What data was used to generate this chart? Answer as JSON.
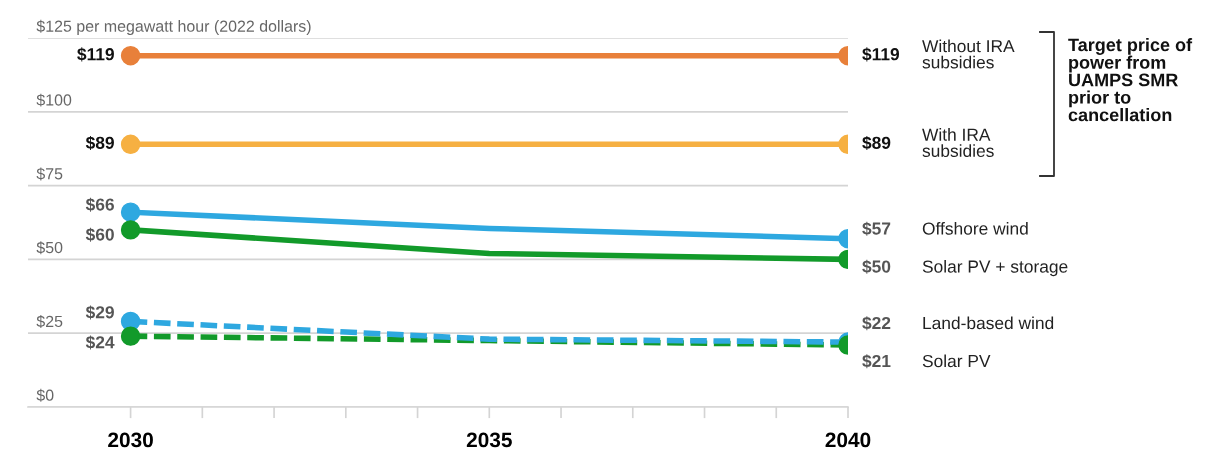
{
  "chart_data": {
    "type": "line",
    "x": [
      2030,
      2035,
      2040
    ],
    "xlim": [
      2028.57,
      2040
    ],
    "xticks": [
      2030,
      {
        "value": 2031,
        "label": null
      },
      {
        "value": 2032,
        "label": null
      },
      {
        "value": 2033,
        "label": null
      },
      {
        "value": 2034,
        "label": null
      },
      2035,
      {
        "value": 2036,
        "label": null
      },
      {
        "value": 2037,
        "label": null
      },
      {
        "value": 2038,
        "label": null
      },
      {
        "value": 2039,
        "label": null
      },
      2040
    ],
    "ylim": [
      0,
      125
    ],
    "yticks": [
      {
        "value": 0,
        "label": "$0"
      },
      {
        "value": 25,
        "label": "$25"
      },
      {
        "value": 50,
        "label": "$50"
      },
      {
        "value": 75,
        "label": "$75"
      },
      {
        "value": 100,
        "label": "$100"
      },
      {
        "value": 125,
        "label": "$125 per megawatt hour (2022 dollars)"
      }
    ],
    "grid": "y",
    "marker": "circle",
    "line_style": "solid",
    "series": [
      {
        "name": "Without IRA\nsubsidies",
        "color": "#e8803a",
        "values": [
          119,
          119,
          119
        ],
        "value_labels": [
          "$119",
          null,
          "$119"
        ]
      },
      {
        "name": "With IRA\nsubsidies",
        "color": "#f6b042",
        "values": [
          89,
          89,
          89
        ],
        "value_labels": [
          "$89",
          null,
          "$89"
        ]
      },
      {
        "name": "Offshore wind",
        "color": "#2ea8e0",
        "values": [
          66,
          60.5,
          57
        ],
        "value_labels": [
          "$66",
          null,
          "$57"
        ]
      },
      {
        "name": "Solar PV + storage",
        "color": "#129a2a",
        "values": [
          60,
          52,
          50
        ],
        "value_labels": [
          "$60",
          null,
          "$50"
        ]
      },
      {
        "name": "Land-based wind",
        "color": "#2ea8e0",
        "values": [
          29,
          23,
          22
        ],
        "value_labels": [
          "$29",
          null,
          "$22"
        ],
        "line_style": "dashed"
      },
      {
        "name": "Solar PV",
        "color": "#129a2a",
        "values": [
          24,
          22.5,
          21
        ],
        "value_labels": [
          "$24",
          null,
          "$21"
        ],
        "line_style": "dashed"
      }
    ],
    "annotations": [
      "Target price of power from UAMPS SMR prior to cancellation"
    ]
  }
}
